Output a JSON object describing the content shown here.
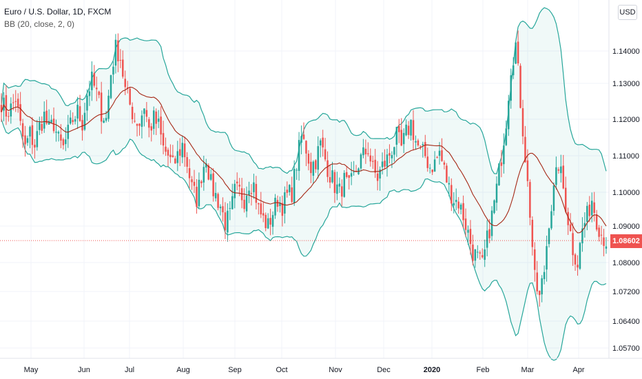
{
  "legend": {
    "symbol": "Euro / U.S. Dollar, 1D, FXCM",
    "indicator": "BB (20, close, 2, 0)"
  },
  "currency_button": "USD",
  "last_price": "1.08602",
  "colors": {
    "up": "#26a69a",
    "down": "#ef5350",
    "bands": "#26a69a",
    "basis": "#a52714",
    "fill": "rgba(38,166,154,0.07)"
  },
  "chart_data": {
    "type": "candlestick",
    "y_ticks": [
      "1.14000",
      "1.13000",
      "1.12000",
      "1.11000",
      "1.10000",
      "1.09000",
      "1.08000",
      "1.07200",
      "1.06400",
      "1.05700"
    ],
    "x_ticks": [
      "May",
      "Jun",
      "Jul",
      "Aug",
      "Sep",
      "Oct",
      "Nov",
      "Dec",
      "2020",
      "Feb",
      "Mar",
      "Apr"
    ],
    "close_path": [
      1.125,
      1.122,
      1.123,
      1.126,
      1.118,
      1.112,
      1.116,
      1.113,
      1.118,
      1.121,
      1.117,
      1.119,
      1.114,
      1.112,
      1.116,
      1.12,
      1.122,
      1.119,
      1.127,
      1.131,
      1.127,
      1.122,
      1.12,
      1.133,
      1.141,
      1.138,
      1.128,
      1.124,
      1.12,
      1.119,
      1.124,
      1.117,
      1.12,
      1.118,
      1.112,
      1.11,
      1.107,
      1.11,
      1.113,
      1.108,
      1.101,
      1.098,
      1.105,
      1.11,
      1.102,
      1.099,
      1.096,
      1.091,
      1.093,
      1.1,
      1.1,
      1.098,
      1.103,
      1.102,
      1.095,
      1.092,
      1.09,
      1.094,
      1.098,
      1.096,
      1.099,
      1.1,
      1.108,
      1.115,
      1.112,
      1.107,
      1.109,
      1.113,
      1.109,
      1.105,
      1.102,
      1.1,
      1.103,
      1.101,
      1.104,
      1.108,
      1.11,
      1.112,
      1.106,
      1.104,
      1.107,
      1.109,
      1.112,
      1.115,
      1.112,
      1.116,
      1.119,
      1.114,
      1.111,
      1.11,
      1.107,
      1.108,
      1.111,
      1.106,
      1.101,
      1.098,
      1.097,
      1.093,
      1.088,
      1.083,
      1.081,
      1.079,
      1.086,
      1.093,
      1.101,
      1.11,
      1.12,
      1.135,
      1.142,
      1.125,
      1.11,
      1.094,
      1.075,
      1.07,
      1.078,
      1.092,
      1.1,
      1.108,
      1.101,
      1.092,
      1.084,
      1.08,
      1.089,
      1.093,
      1.098,
      1.092,
      1.088,
      1.086
    ]
  }
}
